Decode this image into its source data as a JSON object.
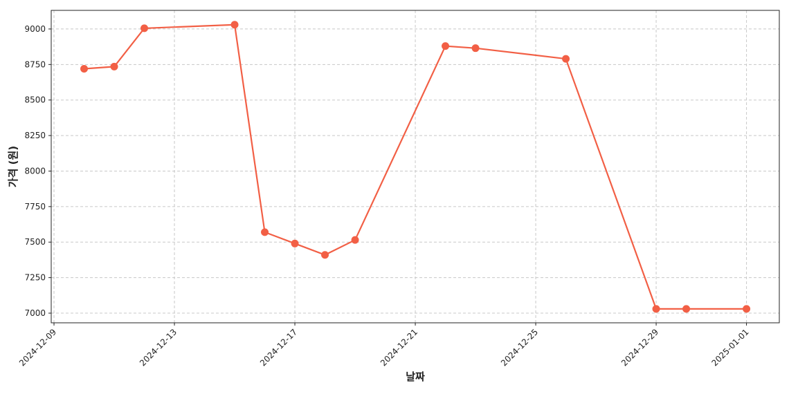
{
  "chart_data": {
    "type": "line",
    "x_label": "날짜",
    "y_label": "가격 (원)",
    "x": [
      "2024-12-10",
      "2024-12-11",
      "2024-12-12",
      "2024-12-15",
      "2024-12-16",
      "2024-12-17",
      "2024-12-18",
      "2024-12-19",
      "2024-12-22",
      "2024-12-23",
      "2024-12-26",
      "2024-12-29",
      "2024-12-30",
      "2025-01-01"
    ],
    "series": [
      {
        "color": "#f25f45",
        "values": [
          8720,
          8735,
          9005,
          9030,
          7570,
          7490,
          7410,
          7515,
          8880,
          8865,
          8790,
          7030,
          7030,
          7030
        ]
      }
    ],
    "xlim": [
      "2024-12-08T21:47",
      "2025-01-02T02:10"
    ],
    "xticks": [
      "2024-12-09",
      "2024-12-13",
      "2024-12-17",
      "2024-12-21",
      "2024-12-25",
      "2024-12-29",
      "2025-01-01"
    ],
    "ylim": [
      6932,
      9131
    ],
    "yticks": [
      7000,
      7250,
      7500,
      7750,
      8000,
      8250,
      8500,
      8750,
      9000
    ],
    "grid": true
  }
}
